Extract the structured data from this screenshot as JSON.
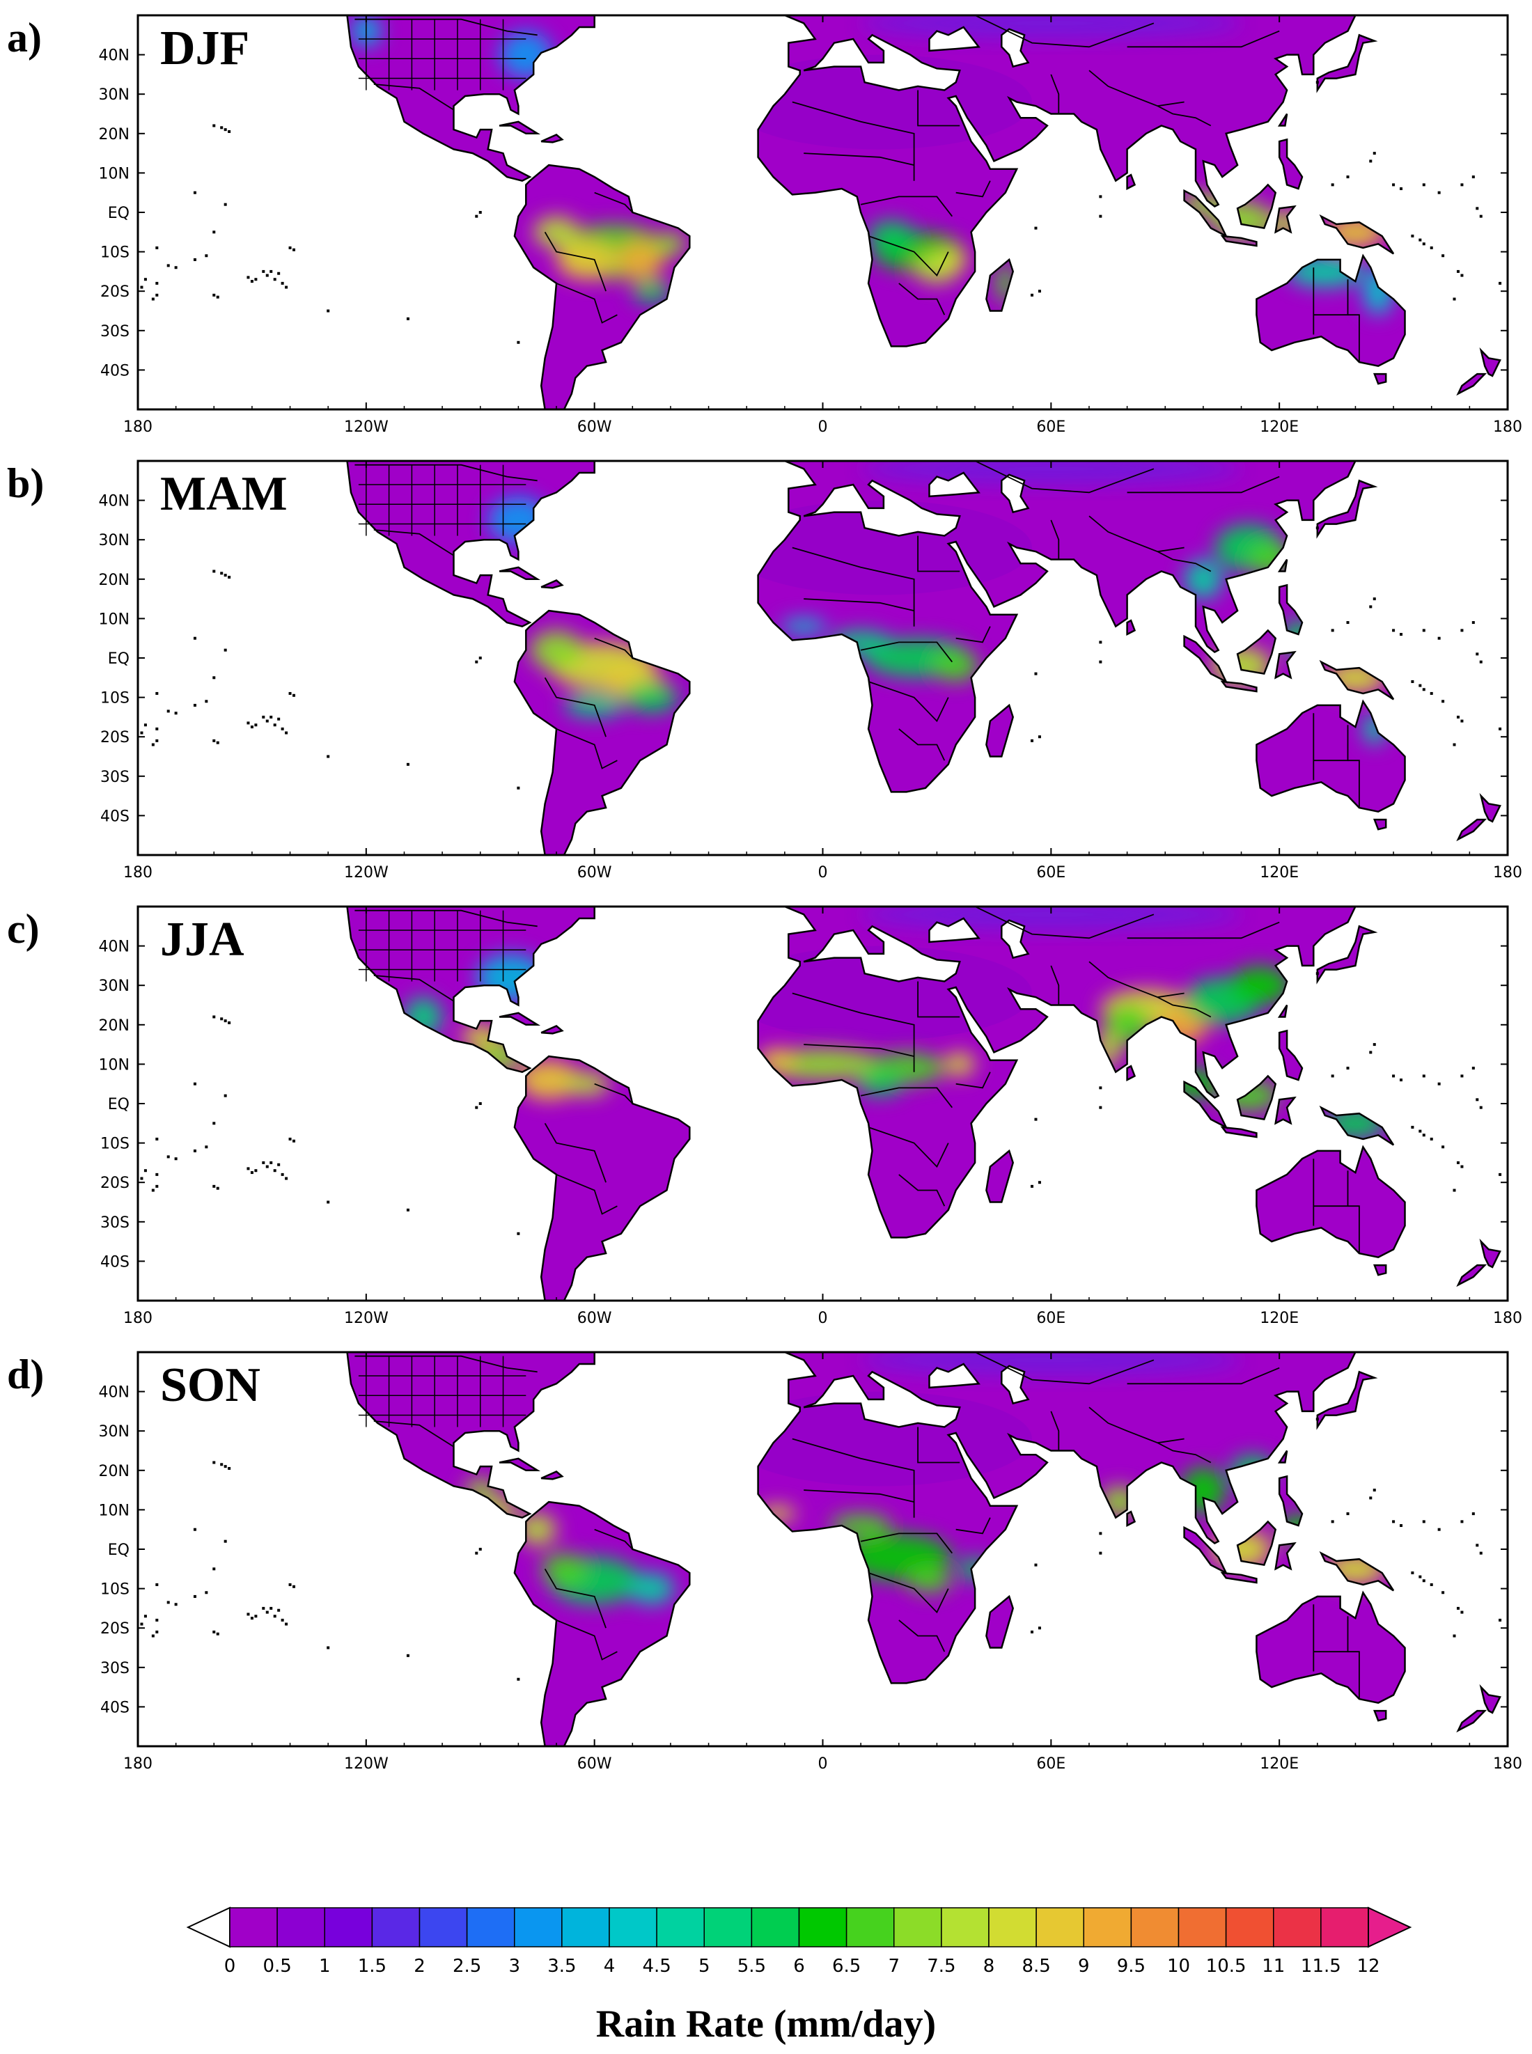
{
  "panels": [
    {
      "letter": "a)",
      "season": "DJF"
    },
    {
      "letter": "b)",
      "season": "MAM"
    },
    {
      "letter": "c)",
      "season": "JJA"
    },
    {
      "letter": "d)",
      "season": "SON"
    }
  ],
  "map": {
    "lat_ticks": [
      "40N",
      "30N",
      "20N",
      "10N",
      "EQ",
      "10S",
      "20S",
      "30S",
      "40S"
    ],
    "lon_ticks": [
      "180",
      "120W",
      "60W",
      "0",
      "60E",
      "120E",
      "180"
    ]
  },
  "legend": {
    "title": "Rain Rate (mm/day)",
    "tick_labels": [
      "0",
      "0.5",
      "1",
      "1.5",
      "2",
      "2.5",
      "3",
      "3.5",
      "4",
      "4.5",
      "5",
      "5.5",
      "6",
      "6.5",
      "7",
      "7.5",
      "8",
      "8.5",
      "9",
      "9.5",
      "10",
      "10.5",
      "11",
      "11.5",
      "12"
    ],
    "colors": [
      "#a000c8",
      "#8c00d2",
      "#7800dc",
      "#5a28e6",
      "#3c46f0",
      "#1e6ef5",
      "#0a96f0",
      "#00b4dc",
      "#00c8c8",
      "#00d2a0",
      "#00d278",
      "#00cd50",
      "#00c800",
      "#46d21e",
      "#8cdc28",
      "#b4e132",
      "#d2dc32",
      "#e6c832",
      "#f0aa32",
      "#f08c32",
      "#f06e32",
      "#f05032",
      "#eb3246",
      "#e61e6e"
    ],
    "under_color": "#ffffff",
    "over_color": "#e61e8c"
  }
}
